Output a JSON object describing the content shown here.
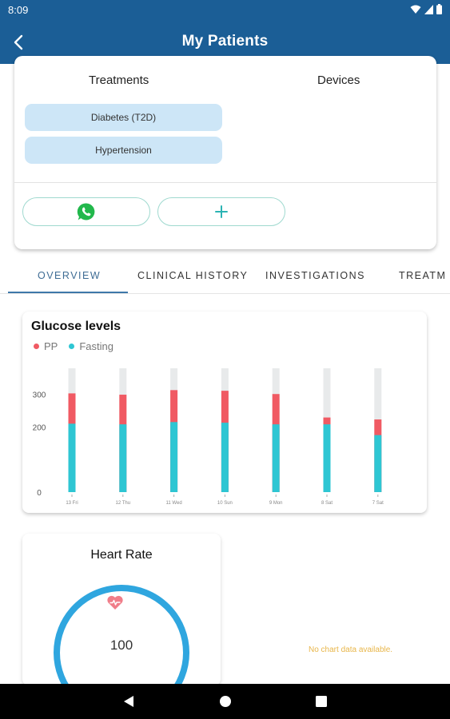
{
  "status_bar": {
    "time": "8:09"
  },
  "app_bar": {
    "title": "My Patients"
  },
  "patient_card": {
    "treatments_heading": "Treatments",
    "devices_heading": "Devices",
    "treatments": [
      "Diabetes (T2D)",
      "Hypertension"
    ]
  },
  "tabs": [
    {
      "label": "OVERVIEW",
      "active": true
    },
    {
      "label": "CLINICAL HISTORY",
      "active": false
    },
    {
      "label": "INVESTIGATIONS",
      "active": false
    },
    {
      "label": "TREATM",
      "active": false
    }
  ],
  "glucose": {
    "title": "Glucose levels",
    "legend": [
      "PP",
      "Fasting"
    ]
  },
  "chart_data": {
    "type": "bar",
    "title": "Glucose levels",
    "categories": [
      "13 Fri",
      "12 Thu",
      "11 Wed",
      "10 Sun",
      "9 Mon",
      "8 Sat",
      "7 Sat"
    ],
    "series": [
      {
        "name": "Fasting",
        "values": [
          210,
          208,
          215,
          213,
          208,
          208,
          175
        ]
      },
      {
        "name": "PP",
        "values": [
          303,
          299,
          313,
          311,
          301,
          229,
          223
        ]
      }
    ],
    "stacked": false,
    "ylim": [
      0,
      380
    ],
    "yticks": [
      0,
      200,
      300
    ],
    "colors": {
      "PP": "#f05a63",
      "Fasting": "#2ec6d3",
      "track": "#e8eaeb"
    },
    "legend_position": "top-left",
    "grid": false
  },
  "heart_rate": {
    "title": "Heart Rate",
    "value": "100",
    "icon": "heart-pulse-icon"
  },
  "empty_chart_message": "No chart data available."
}
